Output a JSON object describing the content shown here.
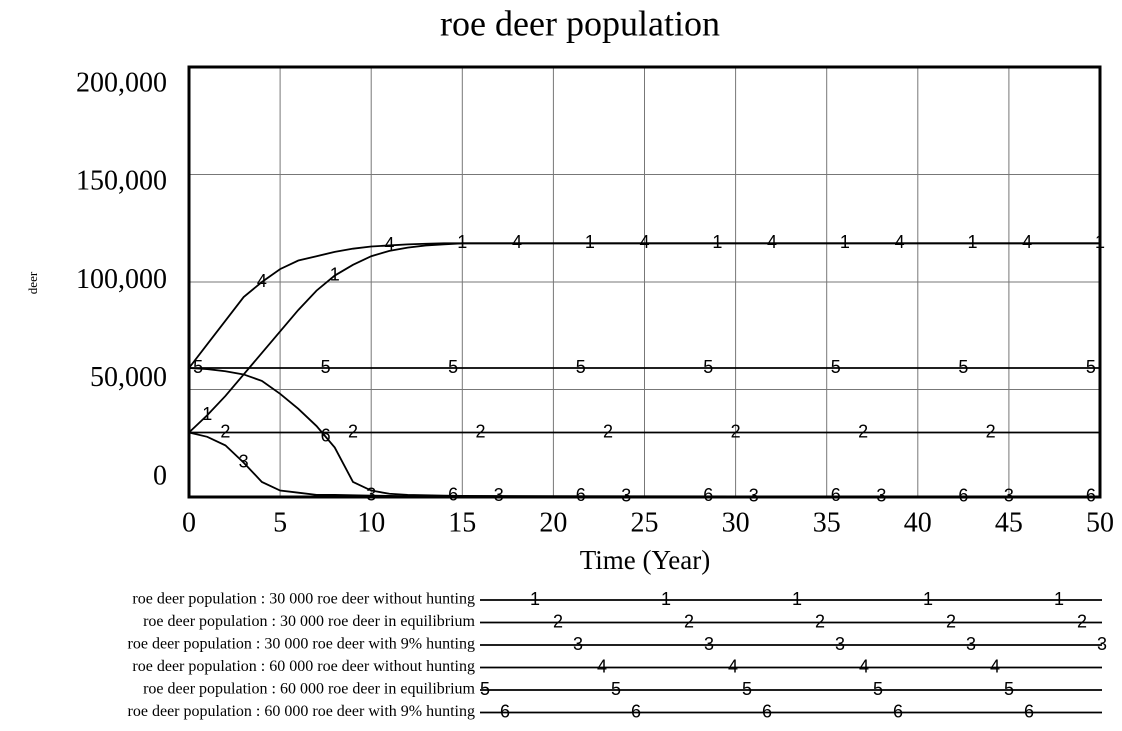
{
  "chart_data": {
    "type": "line",
    "title": "roe deer population",
    "x_label": "Time (Year)",
    "y_label": "deer",
    "x": [
      0,
      1,
      2,
      3,
      4,
      5,
      6,
      7,
      8,
      9,
      10,
      11,
      12,
      13,
      14,
      15,
      20,
      25,
      30,
      35,
      40,
      45,
      50
    ],
    "xlim": [
      0,
      50
    ],
    "xticks": [
      0,
      5,
      10,
      15,
      20,
      25,
      30,
      35,
      40,
      45,
      50
    ],
    "ylim": [
      0,
      200000
    ],
    "yticks": [
      0,
      {
        "value": 50000,
        "label": "50,000"
      },
      {
        "value": 100000,
        "label": "100,000"
      },
      {
        "value": 150000,
        "label": "150,000"
      },
      {
        "value": 200000,
        "label": "200,000"
      }
    ],
    "grid": true,
    "series": [
      {
        "name": "roe deer population : 30 000 roe deer without hunting",
        "marker": "1",
        "color": "#000000",
        "values": [
          30000,
          38000,
          47000,
          57000,
          67000,
          77000,
          87000,
          96000,
          103000,
          108000,
          112000,
          114500,
          116000,
          117000,
          117500,
          118000,
          118000,
          118000,
          118000,
          118000,
          118000,
          118000,
          118000
        ]
      },
      {
        "name": "roe deer population : 30 000 roe deer in equilibrium",
        "marker": "2",
        "color": "#000000",
        "values": [
          30000,
          30000,
          30000,
          30000,
          30000,
          30000,
          30000,
          30000,
          30000,
          30000,
          30000,
          30000,
          30000,
          30000,
          30000,
          30000,
          30000,
          30000,
          30000,
          30000,
          30000,
          30000,
          30000
        ]
      },
      {
        "name": "roe deer population : 30 000 roe deer with 9% hunting",
        "marker": "3",
        "color": "#000000",
        "values": [
          30000,
          28000,
          24000,
          16000,
          7000,
          3000,
          2000,
          1000,
          1000,
          800,
          600,
          500,
          400,
          350,
          300,
          300,
          250,
          200,
          150,
          100,
          80,
          50,
          30
        ]
      },
      {
        "name": "roe deer population : 60 000 roe deer without hunting",
        "marker": "4",
        "color": "#000000",
        "values": [
          60000,
          71000,
          82000,
          93000,
          100000,
          106000,
          110000,
          112000,
          114000,
          115500,
          116500,
          117000,
          117500,
          117800,
          118000,
          118000,
          118000,
          118000,
          118000,
          118000,
          118000,
          118000,
          118000
        ]
      },
      {
        "name": "roe deer population : 60 000 roe deer in equilibrium",
        "marker": "5",
        "color": "#000000",
        "values": [
          60000,
          60000,
          60000,
          60000,
          60000,
          60000,
          60000,
          60000,
          60000,
          60000,
          60000,
          60000,
          60000,
          60000,
          60000,
          60000,
          60000,
          60000,
          60000,
          60000,
          60000,
          60000,
          60000
        ]
      },
      {
        "name": "roe deer population : 60 000 roe deer with 9% hunting",
        "marker": "6",
        "color": "#000000",
        "values": [
          60000,
          59500,
          58500,
          57000,
          54000,
          48000,
          41000,
          33000,
          23000,
          7000,
          3000,
          1500,
          1000,
          800,
          600,
          500,
          400,
          350,
          300,
          250,
          200,
          100,
          50
        ]
      }
    ]
  }
}
